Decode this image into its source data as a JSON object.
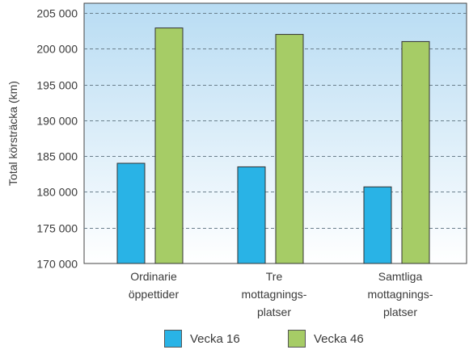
{
  "chart_data": {
    "type": "bar",
    "ylabel": "Total körsträcka (km)",
    "ylim": [
      170000,
      205000
    ],
    "yticks": [
      "170 000",
      "175 000",
      "180 000",
      "185 000",
      "190 000",
      "195 000",
      "200 000",
      "205 000"
    ],
    "ytick_values": [
      170000,
      175000,
      180000,
      185000,
      190000,
      195000,
      200000,
      205000
    ],
    "categories": [
      [
        "Ordinarie",
        "öppettider"
      ],
      [
        "Tre",
        "mottagnings-",
        "platser"
      ],
      [
        "Samtliga",
        "mottagnings-",
        "platser"
      ]
    ],
    "series": [
      {
        "name": "Vecka 16",
        "color": "#29b3e6",
        "values": [
          184000,
          183500,
          180700
        ]
      },
      {
        "name": "Vecka 46",
        "color": "#a6cc66",
        "values": [
          202900,
          202000,
          201000
        ]
      }
    ],
    "grid": true,
    "legend_position": "bottom",
    "background_gradient": [
      "#b8dcf3",
      "#ffffff"
    ]
  }
}
